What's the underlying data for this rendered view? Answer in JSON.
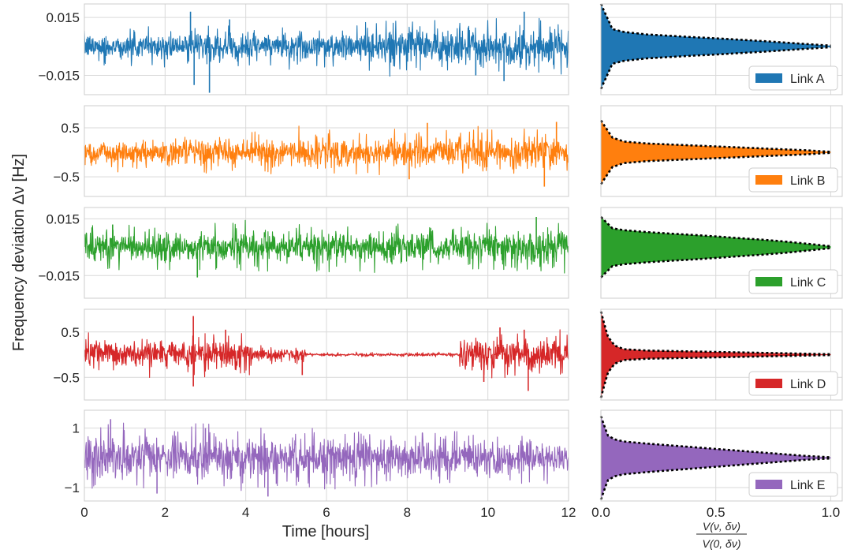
{
  "chart_data": {
    "type": "line",
    "ylabel": "Frequency deviation Δν [Hz]",
    "time_panels": {
      "xlabel": "Time [hours]",
      "xlim": [
        0,
        12
      ],
      "xticks": [
        0,
        2,
        4,
        6,
        8,
        10,
        12
      ],
      "xtick_labels": [
        "0",
        "2",
        "4",
        "6",
        "8",
        "10",
        "12"
      ]
    },
    "ratio_panels": {
      "xlabel": "V(ν, δν) / V(0, δν)",
      "xlabel_numerator": "V(ν, δν)",
      "xlabel_denominator": "V(0, δν)",
      "xlim": [
        0,
        1.05
      ],
      "xticks": [
        0,
        0.5,
        1.0
      ],
      "xtick_labels": [
        "0.0",
        "0.5",
        "1.0"
      ],
      "legend_position": "lower-right"
    },
    "grid": true,
    "series": [
      {
        "name": "Link A",
        "color": "#1f77b4",
        "ylim": [
          -0.025,
          0.022
        ],
        "yticks": [
          0.015,
          -0.015
        ],
        "ytick_labels": [
          "0.015",
          "−0.015"
        ],
        "time_profile": {
          "start_amplitude": 0.007,
          "end_amplitude": 0.011
        },
        "time_spikes": [
          [
            2.63,
            0.018
          ],
          [
            2.72,
            -0.02
          ],
          [
            3.1,
            -0.024
          ],
          [
            3.6,
            0.014
          ],
          [
            10.9,
            0.018
          ],
          [
            10.4,
            -0.018
          ],
          [
            9.7,
            -0.015
          ]
        ],
        "envelope": {
          "t": [
            0.0,
            0.05,
            0.1,
            0.2,
            0.3,
            0.4,
            0.5,
            0.6,
            0.7,
            0.8,
            0.9,
            1.0
          ],
          "amplitude": [
            0.022,
            0.009,
            0.0075,
            0.0062,
            0.0055,
            0.0048,
            0.0042,
            0.0035,
            0.0028,
            0.002,
            0.0012,
            0.0004
          ]
        }
      },
      {
        "name": "Link B",
        "color": "#ff7f0e",
        "ylim": [
          -0.9,
          0.95
        ],
        "yticks": [
          0.5,
          -0.5
        ],
        "ytick_labels": [
          "0.5",
          "−0.5"
        ],
        "time_profile": {
          "start_amplitude": 0.28,
          "end_amplitude": 0.4
        },
        "time_spikes": [
          [
            8.05,
            -0.55
          ],
          [
            11.4,
            -0.7
          ],
          [
            11.7,
            0.62
          ],
          [
            8.5,
            0.6
          ]
        ],
        "envelope": {
          "t": [
            0.0,
            0.05,
            0.1,
            0.2,
            0.3,
            0.4,
            0.5,
            0.6,
            0.7,
            0.8,
            0.9,
            1.0
          ],
          "amplitude": [
            0.65,
            0.3,
            0.22,
            0.18,
            0.16,
            0.14,
            0.12,
            0.1,
            0.08,
            0.06,
            0.04,
            0.01
          ]
        }
      },
      {
        "name": "Link C",
        "color": "#2ca02c",
        "ylim": [
          -0.027,
          0.021
        ],
        "yticks": [
          0.015,
          -0.015
        ],
        "ytick_labels": [
          "0.015",
          "−0.015"
        ],
        "time_profile": {
          "start_amplitude": 0.009,
          "end_amplitude": 0.01
        },
        "time_spikes": [
          [
            2.8,
            -0.016
          ],
          [
            0.7,
            0.012
          ],
          [
            11.2,
            0.016
          ]
        ],
        "envelope": {
          "t": [
            0.0,
            0.05,
            0.1,
            0.2,
            0.3,
            0.4,
            0.5,
            0.6,
            0.7,
            0.8,
            0.9,
            1.0
          ],
          "amplitude": [
            0.016,
            0.01,
            0.009,
            0.008,
            0.0072,
            0.0065,
            0.0057,
            0.0048,
            0.004,
            0.003,
            0.0018,
            0.0005
          ]
        }
      },
      {
        "name": "Link D",
        "color": "#d62728",
        "ylim": [
          -1.0,
          1.0
        ],
        "yticks": [
          0.5,
          -0.5
        ],
        "ytick_labels": [
          "0.5",
          "−0.5"
        ],
        "time_profile": {
          "segments": [
            [
              0,
              4.2,
              0.35
            ],
            [
              4.2,
              5.5,
              0.15
            ],
            [
              5.5,
              9.3,
              0.04
            ],
            [
              9.3,
              12,
              0.4
            ]
          ]
        },
        "time_spikes": [
          [
            2.7,
            0.85
          ],
          [
            2.7,
            -0.7
          ],
          [
            3.5,
            0.55
          ],
          [
            5.4,
            -0.45
          ],
          [
            10.3,
            0.6
          ],
          [
            10.9,
            0.55
          ],
          [
            11.0,
            -0.8
          ],
          [
            9.9,
            -0.6
          ]
        ],
        "envelope": {
          "t": [
            0.0,
            0.03,
            0.06,
            0.1,
            0.2,
            0.3,
            0.4,
            0.5,
            0.6,
            0.7,
            0.8,
            0.9,
            1.0
          ],
          "amplitude": [
            0.95,
            0.4,
            0.2,
            0.12,
            0.09,
            0.08,
            0.07,
            0.06,
            0.05,
            0.04,
            0.03,
            0.02,
            0.01
          ]
        }
      },
      {
        "name": "Link E",
        "color": "#9467bd",
        "ylim": [
          -1.45,
          1.6
        ],
        "yticks": [
          1,
          -1
        ],
        "ytick_labels": [
          "1",
          "−1"
        ],
        "time_profile": {
          "start_amplitude": 0.9,
          "end_amplitude": 0.65
        },
        "time_spikes": [
          [
            0.65,
            1.3
          ],
          [
            1.8,
            -1.2
          ],
          [
            4.55,
            -1.3
          ],
          [
            3.0,
            1.0
          ]
        ],
        "envelope": {
          "t": [
            0.0,
            0.03,
            0.06,
            0.1,
            0.2,
            0.3,
            0.4,
            0.5,
            0.6,
            0.7,
            0.8,
            0.9,
            1.0
          ],
          "amplitude": [
            1.4,
            0.75,
            0.62,
            0.55,
            0.48,
            0.42,
            0.36,
            0.3,
            0.24,
            0.18,
            0.12,
            0.06,
            0.02
          ]
        }
      }
    ]
  }
}
